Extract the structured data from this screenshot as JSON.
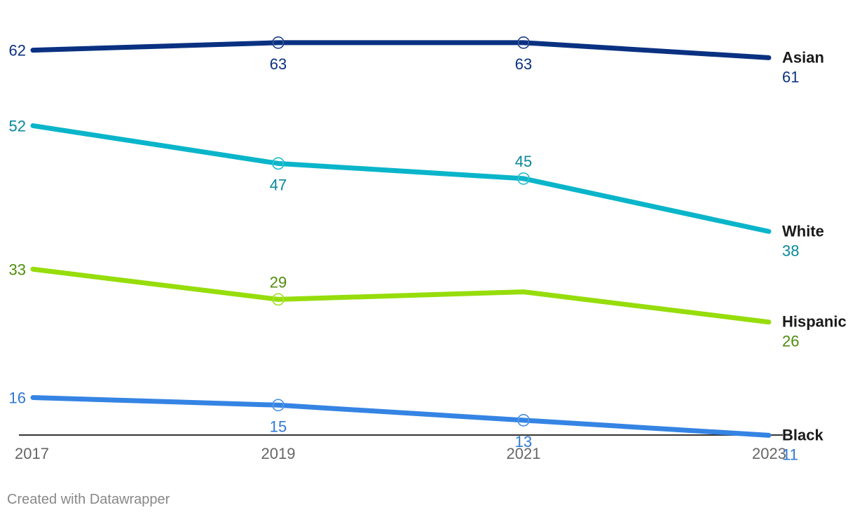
{
  "chart_data": {
    "type": "line",
    "title": "",
    "xlabel": "",
    "ylabel": "",
    "x": [
      "2017",
      "2019",
      "2021",
      "2023"
    ],
    "ylim": [
      0,
      70
    ],
    "grid": false,
    "series": [
      {
        "name": "Asian",
        "color": "#0a3181",
        "label_color": "#0a3181",
        "values": [
          62,
          63,
          63,
          61
        ],
        "labels": [
          "62",
          "63",
          "63",
          "61"
        ],
        "label_pos": [
          "left",
          "below",
          "below",
          "end"
        ],
        "markers": [
          false,
          true,
          true,
          false
        ]
      },
      {
        "name": "White",
        "color": "#0ab5ca",
        "label_color": "#08899b",
        "values": [
          52,
          47,
          45,
          38
        ],
        "labels": [
          "52",
          "47",
          "45",
          "38"
        ],
        "label_pos": [
          "left",
          "below",
          "above",
          "end"
        ],
        "markers": [
          false,
          true,
          true,
          false
        ]
      },
      {
        "name": "Hispanic",
        "color": "#96dd0b",
        "label_color": "#4f8c0b",
        "values": [
          33,
          29,
          30,
          26
        ],
        "labels": [
          "33",
          "29",
          "",
          "26"
        ],
        "label_pos": [
          "left",
          "above",
          "none",
          "end"
        ],
        "markers": [
          false,
          true,
          false,
          false
        ]
      },
      {
        "name": "Black",
        "color": "#3584e4",
        "label_color": "#2f78d4",
        "values": [
          16,
          15,
          13,
          11
        ],
        "labels": [
          "16",
          "15",
          "13",
          "11"
        ],
        "label_pos": [
          "left",
          "below",
          "below",
          "end"
        ],
        "markers": [
          false,
          true,
          true,
          false
        ]
      }
    ]
  },
  "footer": {
    "credit": "Created with Datawrapper"
  }
}
